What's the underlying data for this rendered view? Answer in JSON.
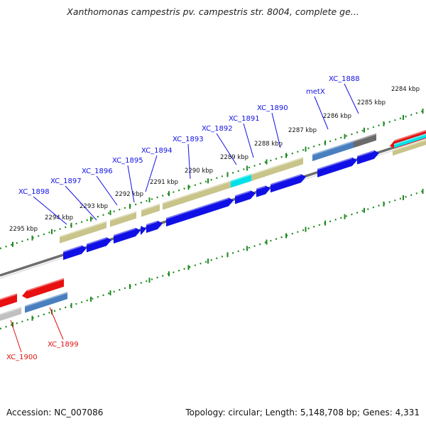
{
  "title": "Xanthomonas campestris pv. campestris str. 8004, complete ge...",
  "footer": {
    "accession": "Accession: NC_007086",
    "topology": "Topology: circular; Length: 5,148,708 bp; Genes: 4,331"
  },
  "colors": {
    "backbone": "#8a8a8a",
    "ruler": "#1e8a1e",
    "cds": "#1010e6",
    "gene_tan": "#c8c48a",
    "gene_steel": "#4a7fbf",
    "gene_cyan": "#00e0e8",
    "gene_dark": "#6a6a6a",
    "gene_red": "#e81010",
    "gene_gray": "#c0c0c0",
    "label_forward": "#1010e6",
    "label_reverse": "#e01010"
  },
  "ticks": [
    {
      "label": "2284 kbp"
    },
    {
      "label": "2285 kbp"
    },
    {
      "label": "2286 kbp"
    },
    {
      "label": "2287 kbp"
    },
    {
      "label": "2288 kbp"
    },
    {
      "label": "2289 kbp"
    },
    {
      "label": "2290 kbp"
    },
    {
      "label": "2291 kbp"
    },
    {
      "label": "2292 kbp"
    },
    {
      "label": "2293 kbp"
    },
    {
      "label": "2294 kbp"
    },
    {
      "label": "2295 kbp"
    }
  ],
  "genes_forward": [
    {
      "name": "XC_1888"
    },
    {
      "name": "metX"
    },
    {
      "name": "XC_1890"
    },
    {
      "name": "XC_1891"
    },
    {
      "name": "XC_1892"
    },
    {
      "name": "XC_1893"
    },
    {
      "name": "XC_1894"
    },
    {
      "name": "XC_1895"
    },
    {
      "name": "XC_1896"
    },
    {
      "name": "XC_1897"
    },
    {
      "name": "XC_1898"
    }
  ],
  "genes_reverse": [
    {
      "name": "XC_1899"
    },
    {
      "name": "XC_1900"
    }
  ]
}
